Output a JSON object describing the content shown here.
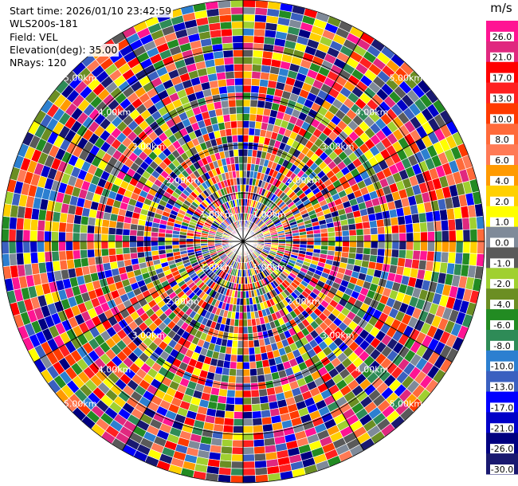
{
  "info": {
    "start_time": "Start time: 2026/01/10 23:42:59",
    "site": "WLS200s-181",
    "field": "Field: VEL",
    "elevation": "Elevation(deg): 35.00",
    "nrays": "NRays: 120"
  },
  "chart_data": {
    "type": "heatmap",
    "subtype": "polar-ppi",
    "field": "VEL",
    "units": "m/s",
    "n_rays": 120,
    "n_gates": 34,
    "max_range_km": 5.0,
    "range_rings_km": [
      1.0,
      2.0,
      3.0,
      4.0,
      5.0
    ],
    "range_ring_labels": [
      "1.00km",
      "2.00km",
      "3.00km",
      "4.00km",
      "5.00km"
    ],
    "colorbar": {
      "title": "m/s",
      "tick_labels": [
        "26.0",
        "21.0",
        "17.0",
        "13.0",
        "10.0",
        "8.0",
        "6.0",
        "4.0",
        "2.0",
        "1.0",
        "0.0",
        "-1.0",
        "-2.0",
        "-4.0",
        "-6.0",
        "-8.0",
        "-10.0",
        "-13.0",
        "-17.0",
        "-21.0",
        "-26.0",
        "-30.0"
      ],
      "colors": [
        "#ff1493",
        "#e0287f",
        "#ff0000",
        "#ff2020",
        "#ff3a00",
        "#ff6a3a",
        "#ff7a55",
        "#ff9a00",
        "#ffd000",
        "#ffff00",
        "#7f8a99",
        "#5a5a5a",
        "#a0d030",
        "#6b8e23",
        "#228b22",
        "#2e8b57",
        "#2c7fd0",
        "#3a60c0",
        "#0000ff",
        "#0000c8",
        "#000080",
        "#191970"
      ]
    },
    "note_grid": "radial spokes every 30 degrees and range rings every 1 km"
  }
}
